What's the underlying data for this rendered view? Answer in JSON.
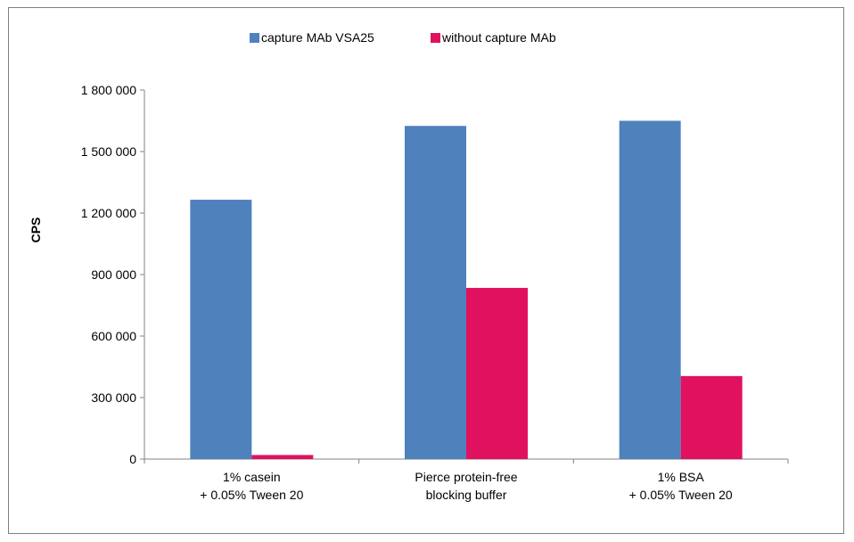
{
  "chart_data": {
    "type": "bar",
    "title": "",
    "xlabel": "",
    "ylabel": "CPS",
    "ylim": [
      0,
      1800000
    ],
    "yticks": [
      0,
      300000,
      600000,
      900000,
      1200000,
      1500000,
      1800000
    ],
    "ytick_labels": [
      "0",
      "300 000",
      "600 000",
      "900 000",
      "1 200 000",
      "1 500 000",
      "1 800 000"
    ],
    "categories": [
      [
        "1% casein",
        "+ 0.05% Tween 20"
      ],
      [
        "Pierce protein-free",
        "blocking buffer"
      ],
      [
        "1% BSA",
        "+ 0.05% Tween 20"
      ]
    ],
    "series": [
      {
        "name": "capture MAb VSA25",
        "color": "#4f81bd",
        "values": [
          1265000,
          1625000,
          1650000
        ]
      },
      {
        "name": "without capture MAb",
        "color": "#e0115f",
        "values": [
          20000,
          835000,
          405000
        ]
      }
    ],
    "grid": false,
    "legend": "top-center"
  }
}
